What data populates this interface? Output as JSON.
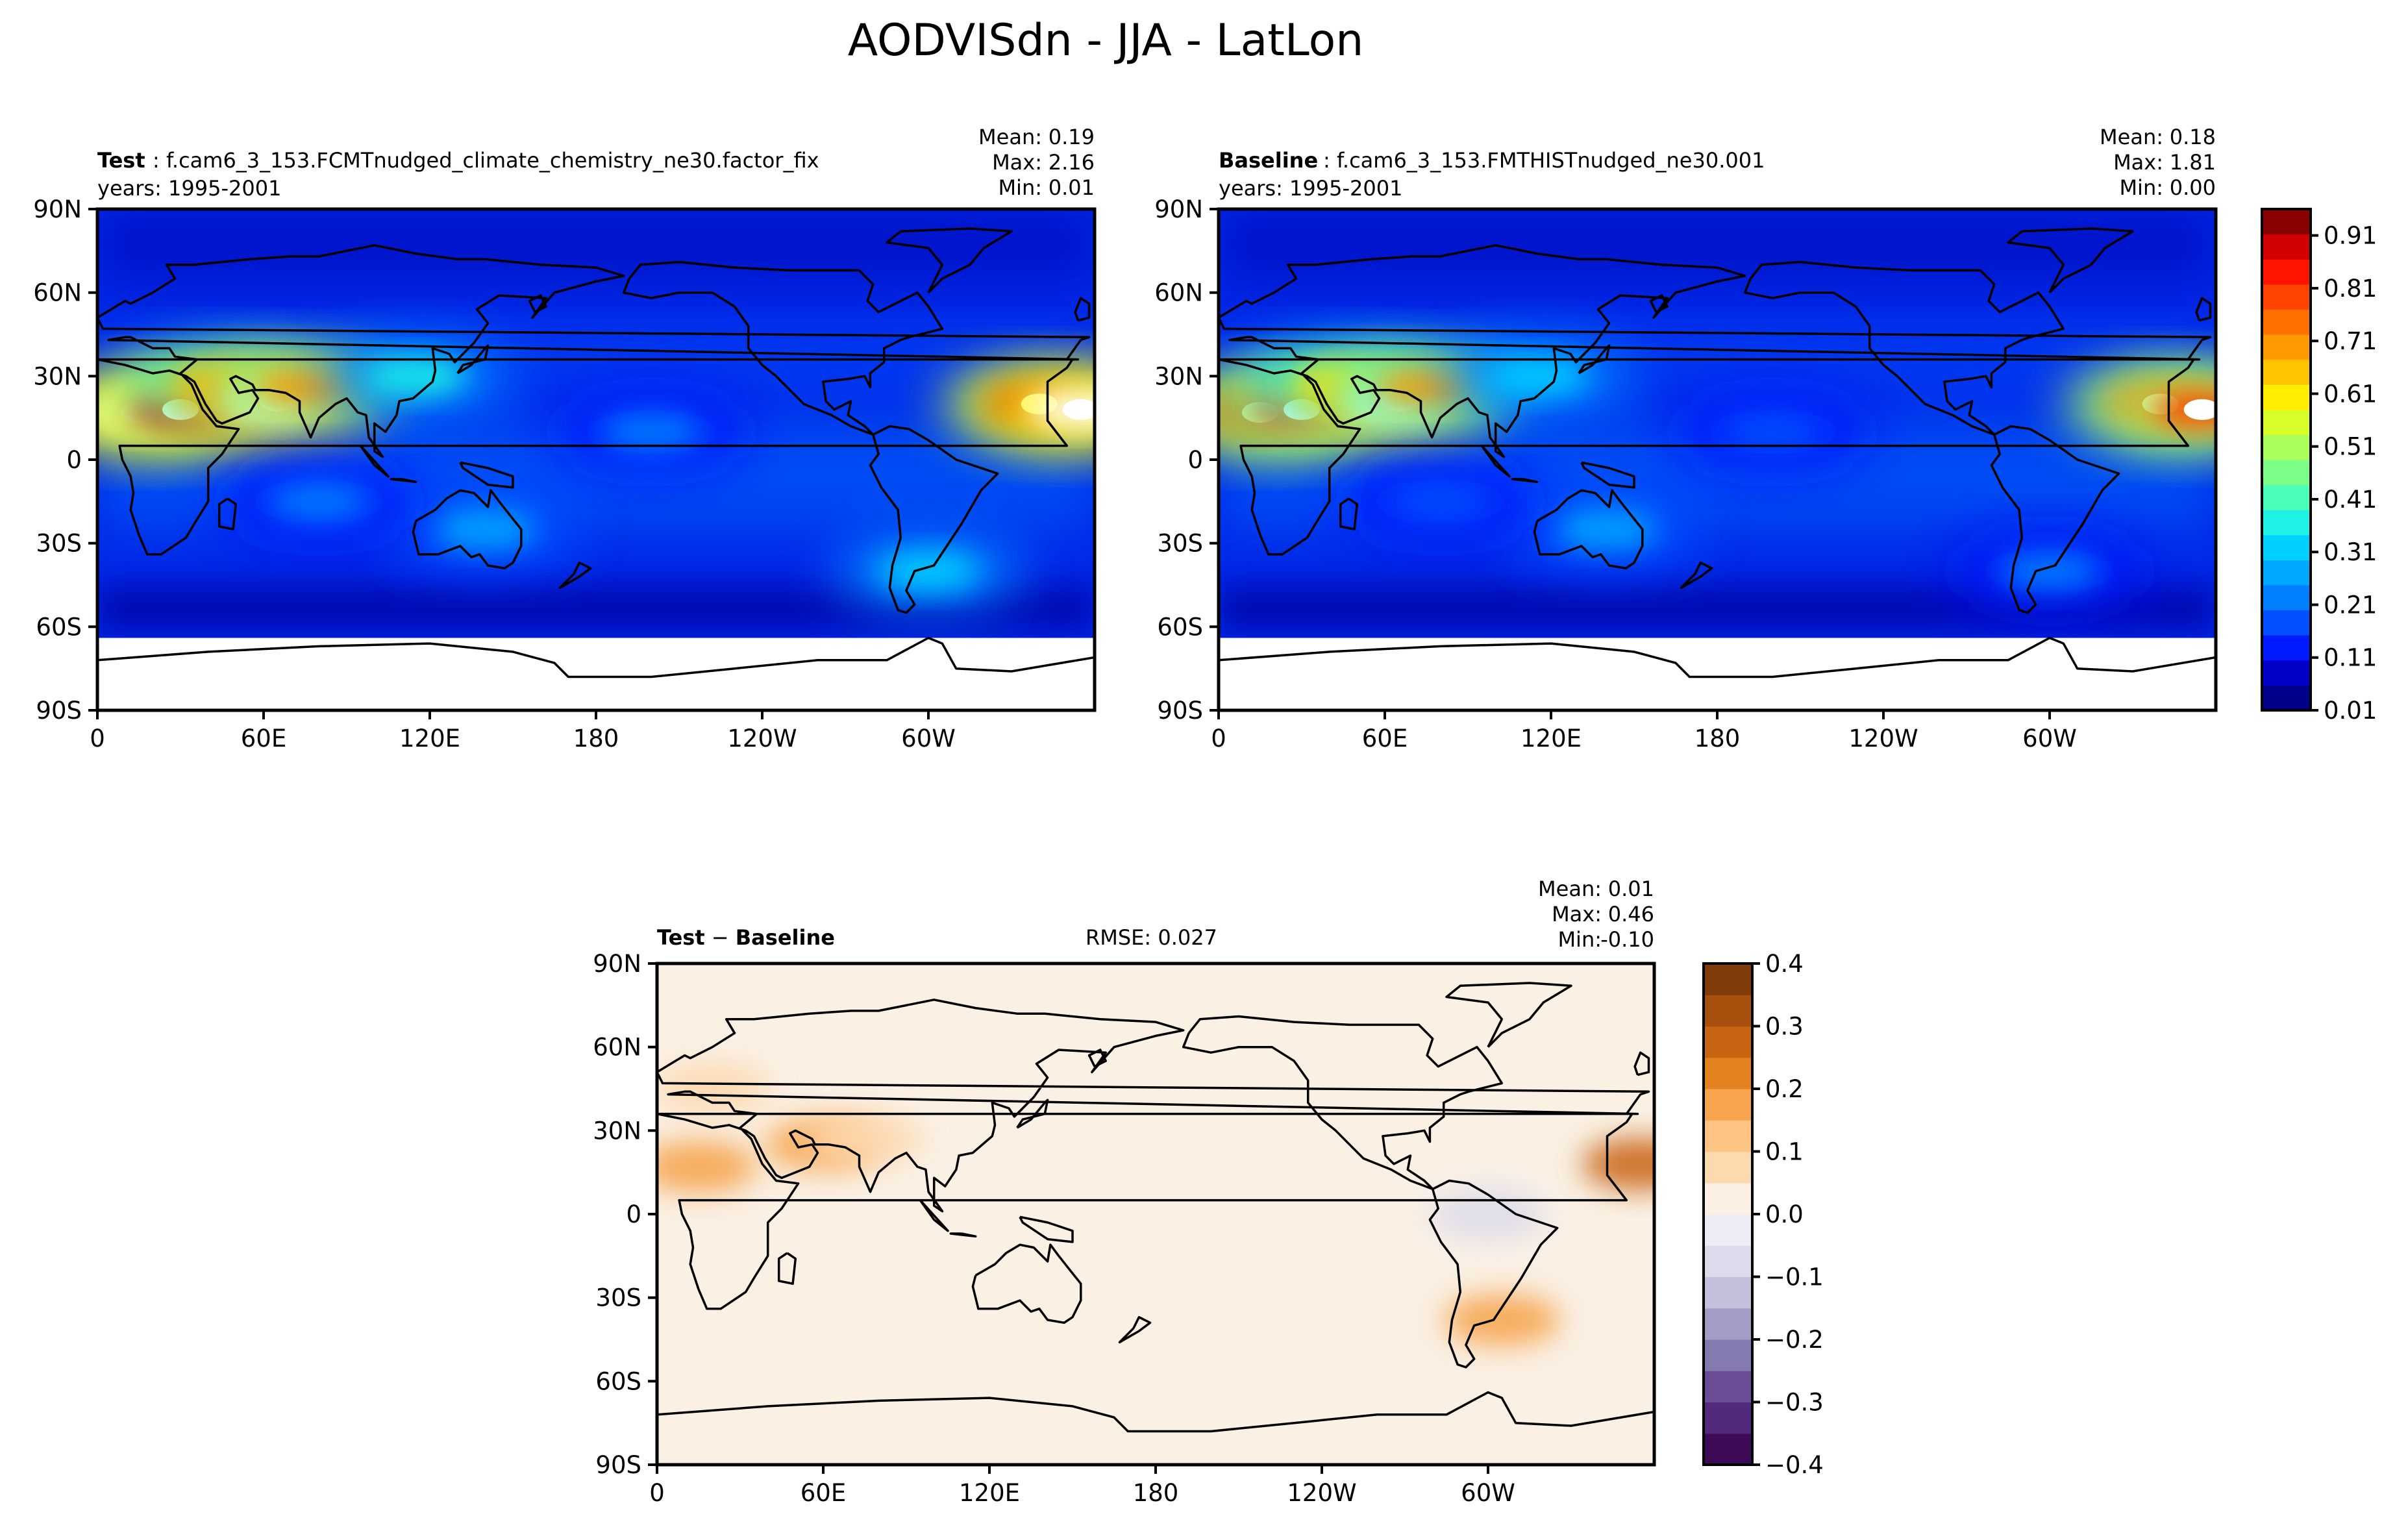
{
  "figure": {
    "title": "AODVISdn - JJA - LatLon"
  },
  "chart_data": [
    {
      "type": "heatmap",
      "panel": "test",
      "label": "Test",
      "case": "f.cam6_3_153.FCMTnudged_climate_chemistry_ne30.factor_fix",
      "years": "years: 1995-2001",
      "stats": {
        "mean": "0.19",
        "max": "2.16",
        "min": "0.01"
      },
      "x_ticks": [
        "0",
        "60E",
        "120E",
        "180",
        "120W",
        "60W"
      ],
      "y_ticks": [
        "90N",
        "60N",
        "30N",
        "0",
        "30S",
        "60S",
        "90S"
      ],
      "xlim": [
        0,
        360
      ],
      "ylim": [
        -90,
        90
      ],
      "hotspots": [
        {
          "lon": 15,
          "lat": 17,
          "value": 1.2
        },
        {
          "lon": 30,
          "lat": 18,
          "value": 1.1
        },
        {
          "lon": 45,
          "lat": 27,
          "value": 0.8
        },
        {
          "lon": 65,
          "lat": 21,
          "value": 1.4
        },
        {
          "lon": 75,
          "lat": 26,
          "value": 0.9
        },
        {
          "lon": 340,
          "lat": 20,
          "value": 1.1
        },
        {
          "lon": 355,
          "lat": 18,
          "value": 1.2
        },
        {
          "lon": 115,
          "lat": 30,
          "value": 0.45
        },
        {
          "lon": 140,
          "lat": -25,
          "value": 0.35
        },
        {
          "lon": 300,
          "lat": -40,
          "value": 0.4
        },
        {
          "lon": 80,
          "lat": -15,
          "value": 0.25
        },
        {
          "lon": 200,
          "lat": 10,
          "value": 0.25
        }
      ]
    },
    {
      "type": "heatmap",
      "panel": "baseline",
      "label": "Baseline",
      "case": "f.cam6_3_153.FMTHISTnudged_ne30.001",
      "years": "years: 1995-2001",
      "stats": {
        "mean": "0.18",
        "max": "1.81",
        "min": "0.00"
      },
      "x_ticks": [
        "0",
        "60E",
        "120E",
        "180",
        "120W",
        "60W"
      ],
      "y_ticks": [
        "90N",
        "60N",
        "30N",
        "0",
        "30S",
        "60S",
        "90S"
      ],
      "xlim": [
        0,
        360
      ],
      "ylim": [
        -90,
        90
      ],
      "hotspots": [
        {
          "lon": 15,
          "lat": 17,
          "value": 1.1
        },
        {
          "lon": 30,
          "lat": 18,
          "value": 1.0
        },
        {
          "lon": 45,
          "lat": 27,
          "value": 0.75
        },
        {
          "lon": 65,
          "lat": 21,
          "value": 1.3
        },
        {
          "lon": 75,
          "lat": 26,
          "value": 0.85
        },
        {
          "lon": 340,
          "lat": 20,
          "value": 1.0
        },
        {
          "lon": 355,
          "lat": 18,
          "value": 1.0
        },
        {
          "lon": 115,
          "lat": 30,
          "value": 0.42
        },
        {
          "lon": 140,
          "lat": -25,
          "value": 0.33
        },
        {
          "lon": 300,
          "lat": -40,
          "value": 0.3
        },
        {
          "lon": 80,
          "lat": -15,
          "value": 0.24
        },
        {
          "lon": 200,
          "lat": 10,
          "value": 0.24
        }
      ],
      "colorbar": {
        "ticks": [
          "0.01",
          "0.11",
          "0.21",
          "0.31",
          "0.41",
          "0.51",
          "0.61",
          "0.71",
          "0.81",
          "0.91"
        ],
        "range": [
          0.01,
          0.96
        ],
        "colors": [
          "#00008b",
          "#0000c8",
          "#0019ff",
          "#0050ff",
          "#0080ff",
          "#00a8ff",
          "#00d0ff",
          "#1ef2e6",
          "#4cffb8",
          "#7cff88",
          "#aaff5a",
          "#d8ff2a",
          "#ffee00",
          "#ffc400",
          "#ff9a00",
          "#ff7000",
          "#ff4400",
          "#ff1400",
          "#d20000",
          "#8b0000"
        ]
      }
    },
    {
      "type": "heatmap",
      "panel": "diff",
      "label_a": "Test",
      "label_b": "Baseline",
      "rmse": "RMSE: 0.027",
      "stats": {
        "mean": "0.01",
        "max": "0.46",
        "min": "-0.10"
      },
      "x_ticks": [
        "0",
        "60E",
        "120E",
        "180",
        "120W",
        "60W"
      ],
      "y_ticks": [
        "90N",
        "60N",
        "30N",
        "0",
        "30S",
        "60S",
        "90S"
      ],
      "xlim": [
        0,
        360
      ],
      "ylim": [
        -90,
        90
      ],
      "anomalies": [
        {
          "lon": 15,
          "lat": 17,
          "value": 0.12
        },
        {
          "lon": 60,
          "lat": 25,
          "value": 0.12
        },
        {
          "lon": 75,
          "lat": 27,
          "value": 0.1
        },
        {
          "lon": 355,
          "lat": 18,
          "value": 0.35
        },
        {
          "lon": 305,
          "lat": -38,
          "value": 0.2
        },
        {
          "lon": 300,
          "lat": 0,
          "value": -0.06
        },
        {
          "lon": 20,
          "lat": 45,
          "value": 0.06
        }
      ],
      "colorbar": {
        "ticks": [
          "0.4",
          "0.3",
          "0.2",
          "0.1",
          "0.0",
          "−0.1",
          "−0.2",
          "−0.3",
          "−0.4"
        ],
        "range": [
          -0.4,
          0.4
        ],
        "colors": [
          "#3f0a55",
          "#512a7e",
          "#6a4d96",
          "#857ab0",
          "#a49dc8",
          "#c3c0db",
          "#dddbeb",
          "#eeedf5",
          "#fbf0e3",
          "#fdd9b0",
          "#fdc484",
          "#f6a44e",
          "#e4821f",
          "#c96512",
          "#a8500e",
          "#7f3b08"
        ]
      }
    }
  ]
}
